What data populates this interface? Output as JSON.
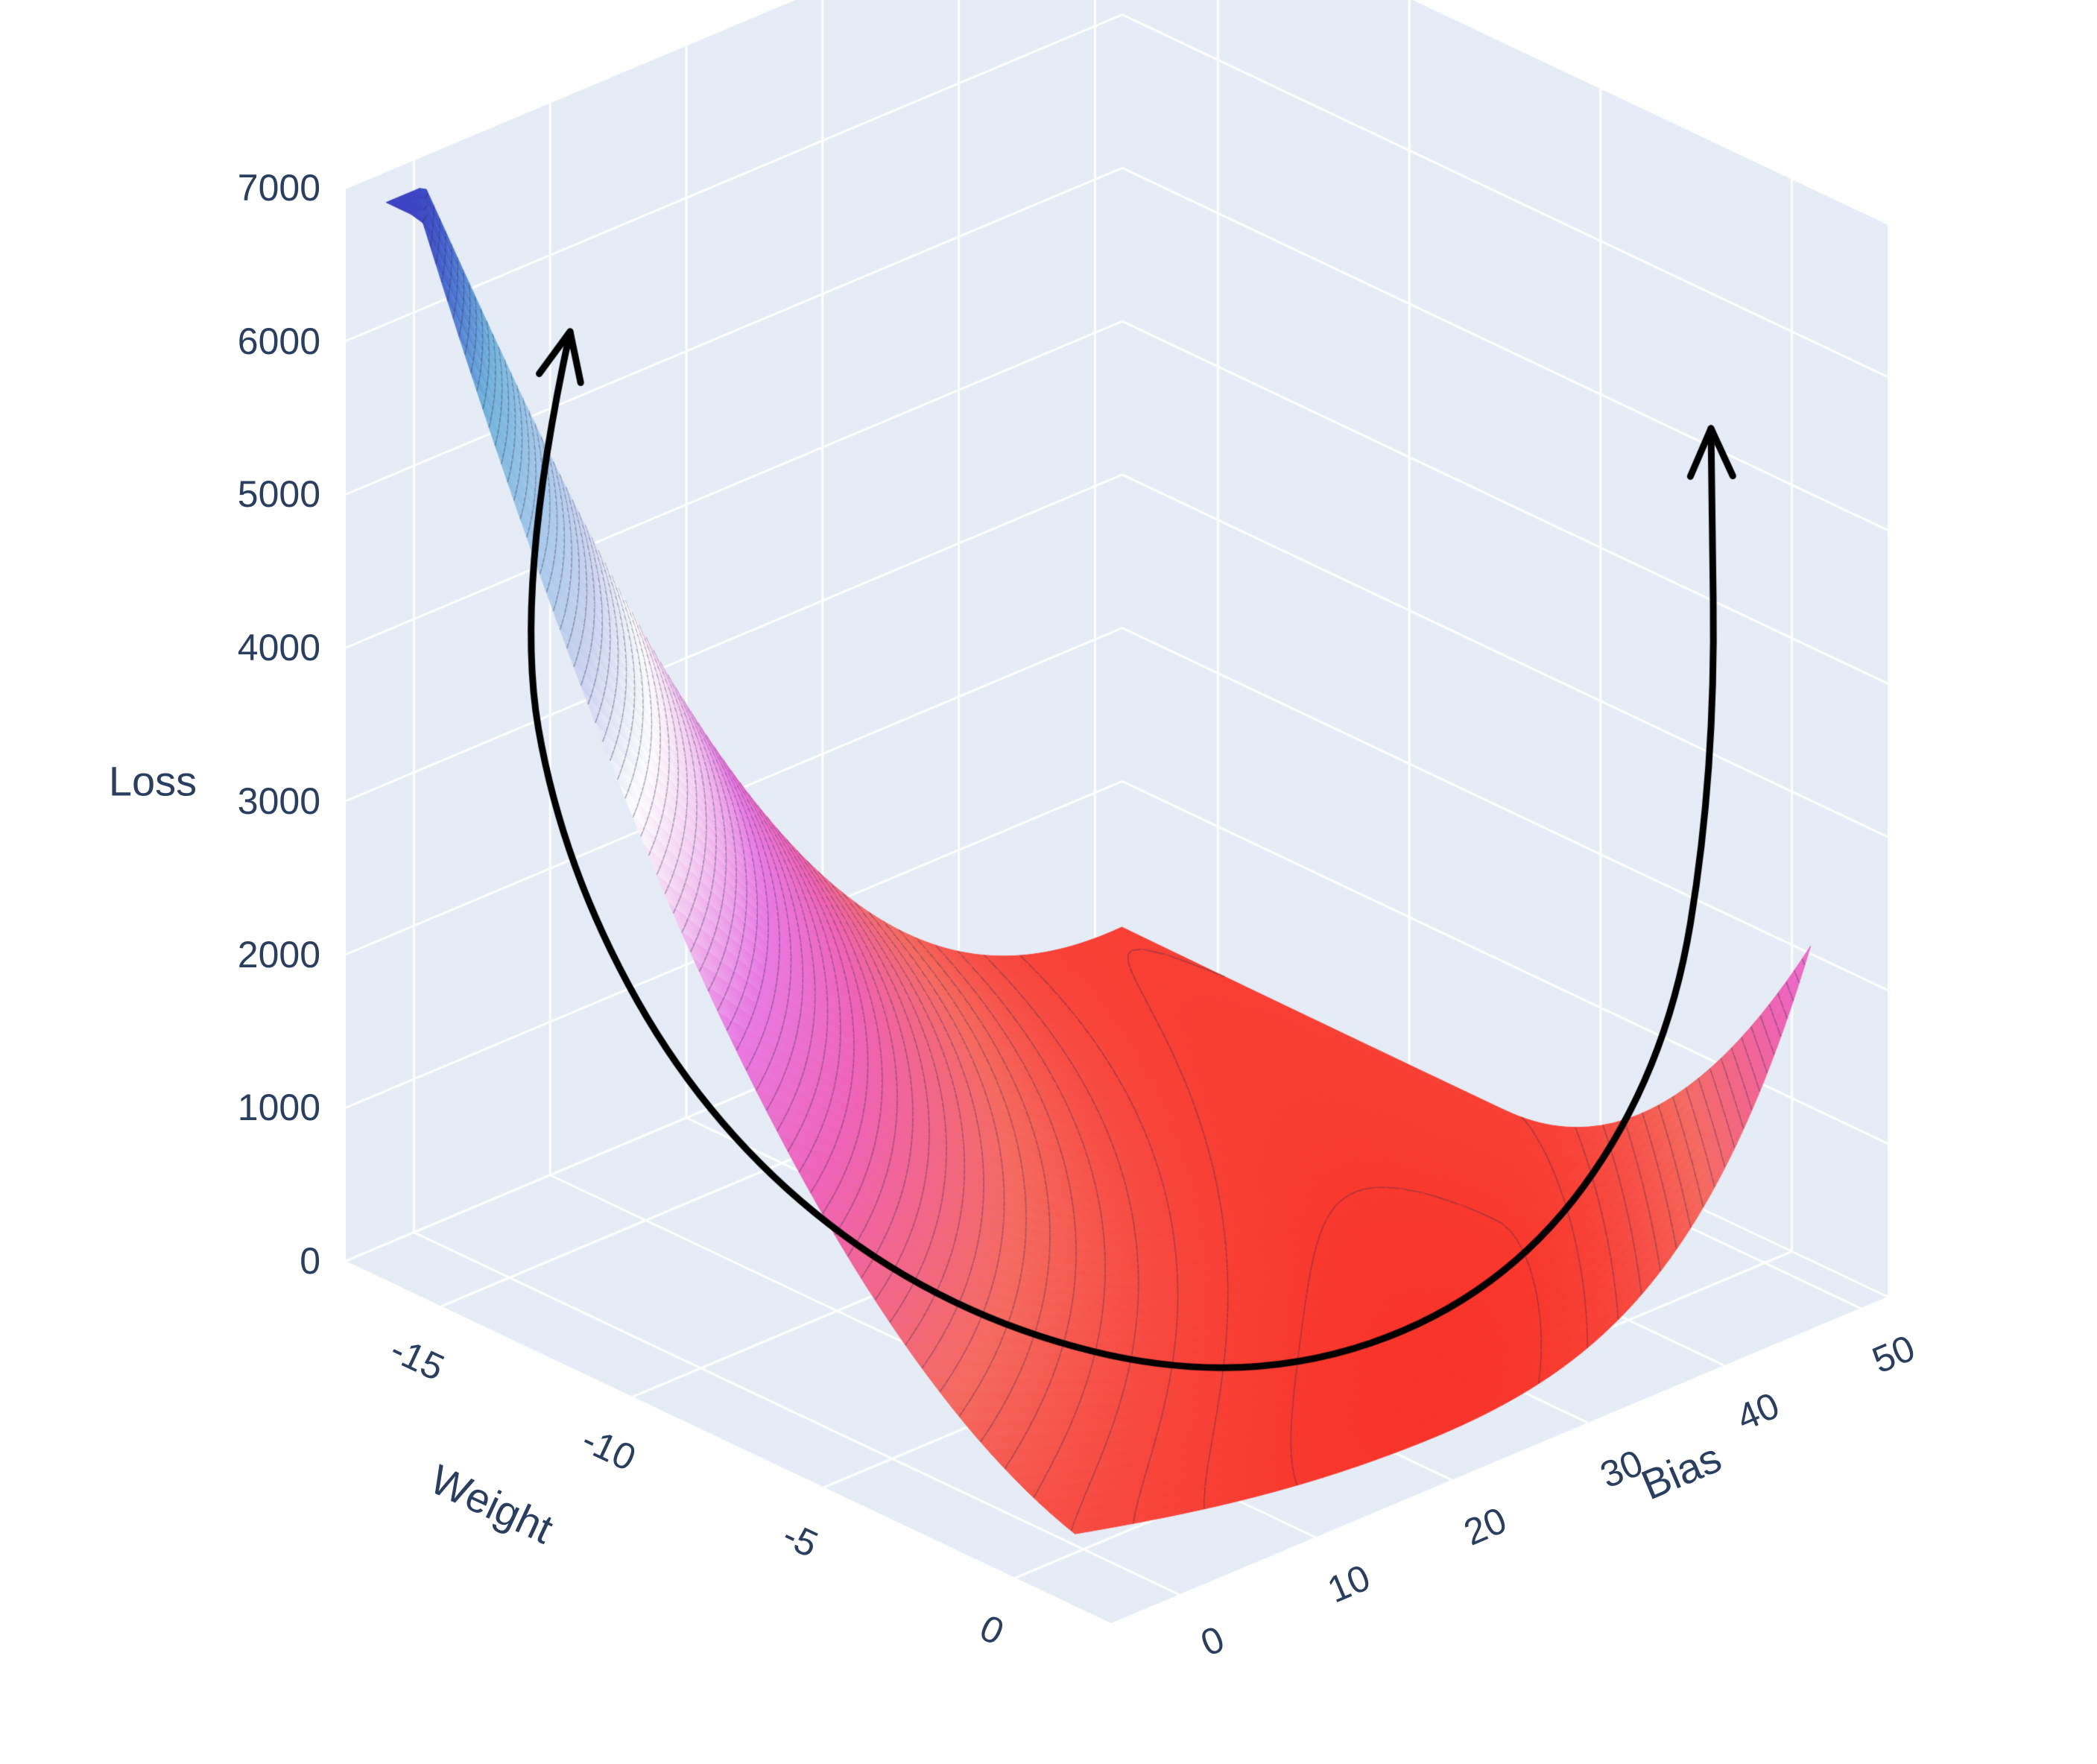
{
  "chart_data": {
    "type": "surface",
    "title": "",
    "scene": {
      "background": "#E5ECF6",
      "grid_color": "#ffffff",
      "label_color": "#2a3f5f",
      "page_background": "#ffffff",
      "grid": true,
      "legend": "none"
    },
    "axes": {
      "weight": {
        "label": "Weight",
        "range": [
          -17.5,
          2.5
        ],
        "tick_values": [
          -15,
          -10,
          -5,
          0
        ],
        "tick_labels": [
          "-15",
          "-10",
          "-5",
          "0"
        ]
      },
      "bias": {
        "label": "Bias",
        "range": [
          -5,
          52
        ],
        "tick_values": [
          0,
          10,
          20,
          30,
          40,
          50
        ],
        "tick_labels": [
          "0",
          "10",
          "20",
          "30",
          "40",
          "50"
        ]
      },
      "loss": {
        "label": "Loss",
        "range": [
          0,
          7000
        ],
        "tick_values": [
          0,
          1000,
          2000,
          3000,
          4000,
          5000,
          6000,
          7000
        ],
        "tick_labels": [
          "0",
          "1000",
          "2000",
          "3000",
          "4000",
          "5000",
          "6000",
          "7000"
        ]
      }
    },
    "surface": {
      "weight_domain": [
        -16.8,
        1.2
      ],
      "bias_domain": [
        -4,
        50
      ],
      "z_cap": 6950,
      "peak_loss": 6950,
      "valley_min_loss": 30,
      "valley_min_at": {
        "weight": 0.5,
        "bias": 25
      },
      "left_peak_at": {
        "weight": -16,
        "bias": -2
      },
      "right_tip_loss": 2200,
      "right_tip_at": {
        "weight": 1,
        "bias": 50
      },
      "model": {
        "description": "loss(u,v) = valley_z(u) + K(u,side)*(v_star(u)-v)^2 ; u = normalized bias, v = normalized weight (front = max weight)",
        "v_star_poly": [
          1.05,
          -0.05,
          -0.5
        ],
        "valley_z": {
          "base": 30,
          "amp": 950,
          "center": 0.55
        },
        "k_back": {
          "scale": 7300,
          "pow": 1.5
        },
        "k_front_poly": [
          1500,
          0,
          12000
        ]
      },
      "colorscale": [
        [
          0.0,
          "#f93227"
        ],
        [
          0.12,
          "#f56a60"
        ],
        [
          0.25,
          "#ef63b6"
        ],
        [
          0.36,
          "#e97ae4"
        ],
        [
          0.46,
          "#f5d0f3"
        ],
        [
          0.53,
          "#fdfdfe"
        ],
        [
          0.63,
          "#ccd4f0"
        ],
        [
          0.74,
          "#a3c8ea"
        ],
        [
          0.84,
          "#72b4dd"
        ],
        [
          0.93,
          "#4a6fd0"
        ],
        [
          1.0,
          "#3a3fc1"
        ]
      ],
      "contour_interval": 100,
      "contour_color": "rgba(45,45,75,0.38)"
    },
    "annotation_arrow": {
      "color": "#000000",
      "stroke_width": 9,
      "head_length": 70,
      "head_angle_deg": 24,
      "points": [
        [
          765,
          445
        ],
        [
          690,
          790
        ],
        [
          755,
          1165
        ],
        [
          955,
          1520
        ],
        [
          1270,
          1765
        ],
        [
          1665,
          1862
        ],
        [
          2015,
          1742
        ],
        [
          2235,
          1442
        ],
        [
          2302,
          1035
        ],
        [
          2296,
          575
        ]
      ]
    }
  }
}
